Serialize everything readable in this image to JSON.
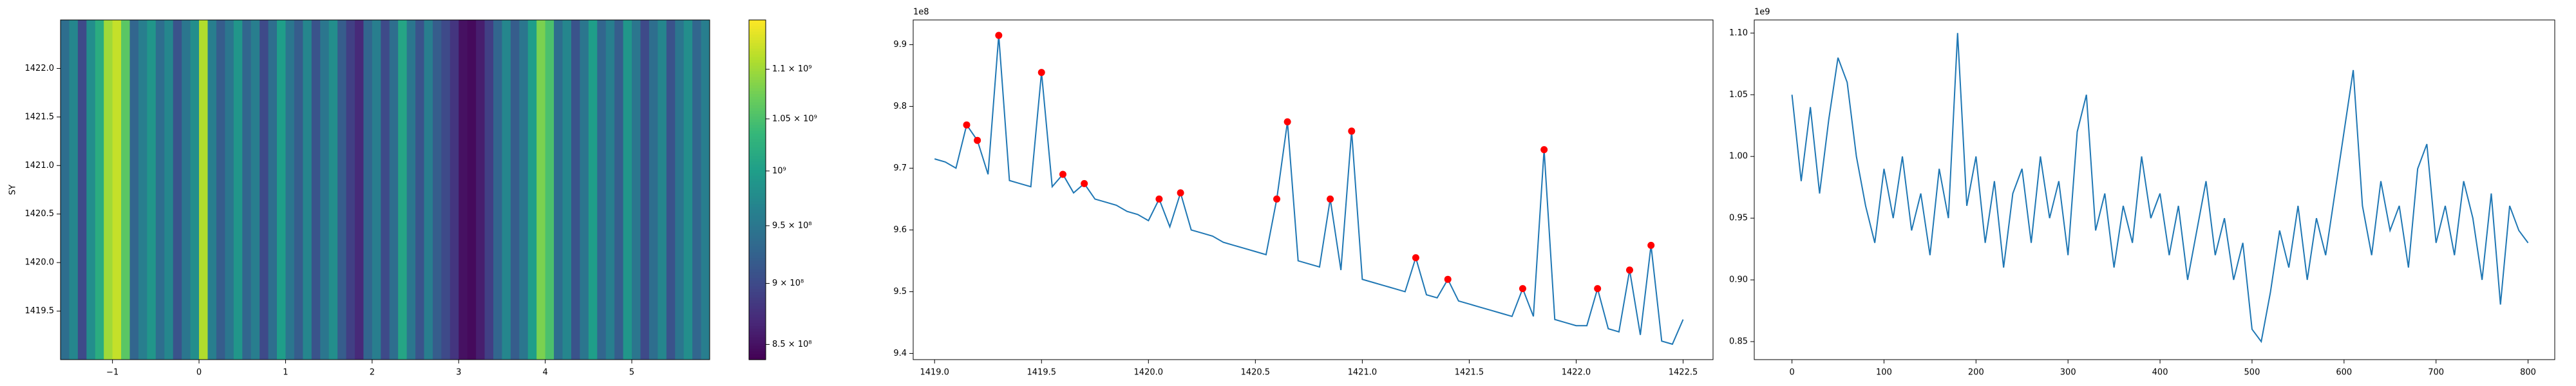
{
  "chart_data": [
    {
      "type": "heatmap",
      "ylabel": "SY",
      "colormap": "viridis",
      "xlim": [
        -1.6,
        5.9
      ],
      "ylim": [
        1419.0,
        1422.5
      ],
      "xticks": [
        {
          "value": -1,
          "label": "−1"
        },
        0,
        1,
        2,
        3,
        4,
        5
      ],
      "yticks": [
        1419.5,
        {
          "value": 1420,
          "label": "1420.0"
        },
        1420.5,
        {
          "value": 1421,
          "label": "1421.0"
        },
        1421.5,
        {
          "value": 1422,
          "label": "1422.0"
        }
      ],
      "xbins": [
        -1.6,
        -1.5,
        -1.4,
        -1.3,
        -1.2,
        -1.1,
        -1.0,
        -0.9,
        -0.8,
        -0.7,
        -0.6,
        -0.5,
        -0.4,
        -0.3,
        -0.2,
        -0.1,
        0.0,
        0.1,
        0.2,
        0.3,
        0.4,
        0.5,
        0.6,
        0.7,
        0.8,
        0.9,
        1.0,
        1.1,
        1.2,
        1.3,
        1.4,
        1.5,
        1.6,
        1.7,
        1.8,
        1.9,
        2.0,
        2.1,
        2.2,
        2.3,
        2.4,
        2.5,
        2.6,
        2.7,
        2.8,
        2.9,
        3.0,
        3.1,
        3.2,
        3.3,
        3.4,
        3.5,
        3.6,
        3.7,
        3.8,
        3.9,
        4.0,
        4.1,
        4.2,
        4.3,
        4.4,
        4.5,
        4.6,
        4.7,
        4.8,
        4.9,
        5.0,
        5.1,
        5.2,
        5.3,
        5.4,
        5.5,
        5.6,
        5.7,
        5.8,
        5.9
      ],
      "values": [
        940000000.0,
        970000000.0,
        900000000.0,
        980000000.0,
        1020000000.0,
        1100000000.0,
        1120000000.0,
        1060000000.0,
        930000000.0,
        960000000.0,
        990000000.0,
        940000000.0,
        970000000.0,
        910000000.0,
        950000000.0,
        980000000.0,
        1110000000.0,
        960000000.0,
        920000000.0,
        950000000.0,
        990000000.0,
        930000000.0,
        960000000.0,
        900000000.0,
        940000000.0,
        1000000000.0,
        950000000.0,
        920000000.0,
        970000000.0,
        910000000.0,
        950000000.0,
        980000000.0,
        920000000.0,
        890000000.0,
        870000000.0,
        930000000.0,
        960000000.0,
        900000000.0,
        940000000.0,
        1010000000.0,
        950000000.0,
        910000000.0,
        960000000.0,
        920000000.0,
        900000000.0,
        880000000.0,
        850000000.0,
        845000000.0,
        860000000.0,
        890000000.0,
        930000000.0,
        970000000.0,
        920000000.0,
        950000000.0,
        1000000000.0,
        1080000000.0,
        1050000000.0,
        940000000.0,
        970000000.0,
        910000000.0,
        950000000.0,
        1000000000.0,
        930000000.0,
        960000000.0,
        920000000.0,
        990000000.0,
        950000000.0,
        900000000.0,
        940000000.0,
        970000000.0,
        910000000.0,
        950000000.0,
        980000000.0,
        930000000.0,
        960000000.0
      ],
      "colorbar": {
        "log": true,
        "lim": [
          838000000.0,
          1152000000.0
        ],
        "ticks": [
          {
            "value": 850000000.0,
            "label": "8.5 × 10⁸"
          },
          {
            "value": 900000000.0,
            "label": "9 × 10⁸"
          },
          {
            "value": 950000000.0,
            "label": "9.5 × 10⁸"
          },
          {
            "value": 1000000000.0,
            "label": "10⁹"
          },
          {
            "value": 1050000000.0,
            "label": "1.05 × 10⁹"
          },
          {
            "value": 1100000000.0,
            "label": "1.1 × 10⁹"
          }
        ]
      }
    },
    {
      "type": "line",
      "offset_text": "1e8",
      "xlim": [
        1418.9,
        1422.64
      ],
      "ylim": [
        9.39,
        9.94
      ],
      "xticks": [
        {
          "value": 1419,
          "label": "1419.0"
        },
        1419.5,
        {
          "value": 1420,
          "label": "1420.0"
        },
        1420.5,
        {
          "value": 1421,
          "label": "1421.0"
        },
        1421.5,
        {
          "value": 1422,
          "label": "1422.0"
        },
        1422.5
      ],
      "yticks": [
        9.4,
        9.5,
        9.6,
        9.7,
        9.8,
        9.9
      ],
      "series": [
        {
          "type": "line",
          "color": "#1f77b4",
          "x": [
            1419,
            1419.05,
            1419.1,
            1419.15,
            1419.2,
            1419.25,
            1419.3,
            1419.35,
            1419.4,
            1419.45,
            1419.5,
            1419.55,
            1419.6,
            1419.65,
            1419.7,
            1419.75,
            1419.8,
            1419.85,
            1419.9,
            1419.95,
            1420,
            1420.05,
            1420.1,
            1420.15,
            1420.2,
            1420.25,
            1420.3,
            1420.35,
            1420.4,
            1420.45,
            1420.5,
            1420.55,
            1420.6,
            1420.65,
            1420.7,
            1420.75,
            1420.8,
            1420.85,
            1420.9,
            1420.95,
            1421,
            1421.05,
            1421.1,
            1421.15,
            1421.2,
            1421.25,
            1421.3,
            1421.35,
            1421.4,
            1421.45,
            1421.5,
            1421.55,
            1421.6,
            1421.65,
            1421.7,
            1421.75,
            1421.8,
            1421.85,
            1421.9,
            1421.95,
            1422,
            1422.05,
            1422.1,
            1422.15,
            1422.2,
            1422.25,
            1422.3,
            1422.35,
            1422.4,
            1422.45,
            1422.5
          ],
          "values": [
            9.715,
            9.71,
            9.7,
            9.77,
            9.745,
            9.69,
            9.915,
            9.68,
            9.675,
            9.67,
            9.855,
            9.67,
            9.69,
            9.66,
            9.675,
            9.65,
            9.645,
            9.64,
            9.63,
            9.625,
            9.615,
            9.65,
            9.605,
            9.66,
            9.6,
            9.595,
            9.59,
            9.58,
            9.575,
            9.57,
            9.565,
            9.56,
            9.65,
            9.775,
            9.55,
            9.545,
            9.54,
            9.65,
            9.535,
            9.76,
            9.52,
            9.515,
            9.51,
            9.505,
            9.5,
            9.555,
            9.495,
            9.49,
            9.52,
            9.485,
            9.48,
            9.475,
            9.47,
            9.465,
            9.46,
            9.505,
            9.46,
            9.73,
            9.455,
            9.45,
            9.445,
            9.445,
            9.505,
            9.44,
            9.435,
            9.535,
            9.43,
            9.575,
            9.42,
            9.415,
            9.455
          ]
        },
        {
          "type": "scatter",
          "color": "#ff0000",
          "x": [
            1419.15,
            1419.2,
            1419.3,
            1419.5,
            1419.6,
            1419.7,
            1420.05,
            1420.15,
            1420.6,
            1420.65,
            1420.85,
            1420.95,
            1421.25,
            1421.4,
            1421.75,
            1421.85,
            1422.1,
            1422.25,
            1422.35
          ],
          "values": [
            9.77,
            9.745,
            9.915,
            9.855,
            9.69,
            9.675,
            9.65,
            9.66,
            9.65,
            9.775,
            9.65,
            9.76,
            9.555,
            9.52,
            9.505,
            9.73,
            9.505,
            9.535,
            9.575
          ]
        }
      ]
    },
    {
      "type": "line",
      "offset_text": "1e9",
      "xlim": [
        -41,
        829
      ],
      "ylim": [
        0.8354,
        1.1106
      ],
      "xticks": [
        0,
        100,
        200,
        300,
        400,
        500,
        600,
        700,
        800
      ],
      "yticks": [
        0.85,
        {
          "value": 0.9,
          "label": "0.90"
        },
        0.95,
        {
          "value": 1,
          "label": "1.00"
        },
        1.05,
        {
          "value": 1.1,
          "label": "1.10"
        }
      ],
      "series": [
        {
          "type": "line",
          "color": "#1f77b4",
          "x": [
            0,
            10,
            20,
            30,
            40,
            50,
            60,
            70,
            80,
            90,
            100,
            110,
            120,
            130,
            140,
            150,
            160,
            170,
            180,
            190,
            200,
            210,
            220,
            230,
            240,
            250,
            260,
            270,
            280,
            290,
            300,
            310,
            320,
            330,
            340,
            350,
            360,
            370,
            380,
            390,
            400,
            410,
            420,
            430,
            440,
            450,
            460,
            470,
            480,
            490,
            500,
            510,
            520,
            530,
            540,
            550,
            560,
            570,
            580,
            590,
            600,
            610,
            620,
            630,
            640,
            650,
            660,
            670,
            680,
            690,
            700,
            710,
            720,
            730,
            740,
            750,
            760,
            770,
            780,
            790,
            800
          ],
          "values": [
            1.05,
            0.98,
            1.04,
            0.97,
            1.03,
            1.08,
            1.06,
            1.0,
            0.96,
            0.93,
            0.99,
            0.95,
            1.0,
            0.94,
            0.97,
            0.92,
            0.99,
            0.95,
            1.1,
            0.96,
            1.0,
            0.93,
            0.98,
            0.91,
            0.97,
            0.99,
            0.93,
            1.0,
            0.95,
            0.98,
            0.92,
            1.02,
            1.05,
            0.94,
            0.97,
            0.91,
            0.96,
            0.93,
            1.0,
            0.95,
            0.97,
            0.92,
            0.96,
            0.9,
            0.94,
            0.98,
            0.92,
            0.95,
            0.9,
            0.93,
            0.86,
            0.85,
            0.89,
            0.94,
            0.91,
            0.96,
            0.9,
            0.95,
            0.92,
            0.97,
            1.02,
            1.07,
            0.96,
            0.92,
            0.98,
            0.94,
            0.96,
            0.91,
            0.99,
            1.01,
            0.93,
            0.96,
            0.92,
            0.98,
            0.95,
            0.9,
            0.97,
            0.88,
            0.96,
            0.94,
            0.93
          ]
        }
      ]
    }
  ]
}
